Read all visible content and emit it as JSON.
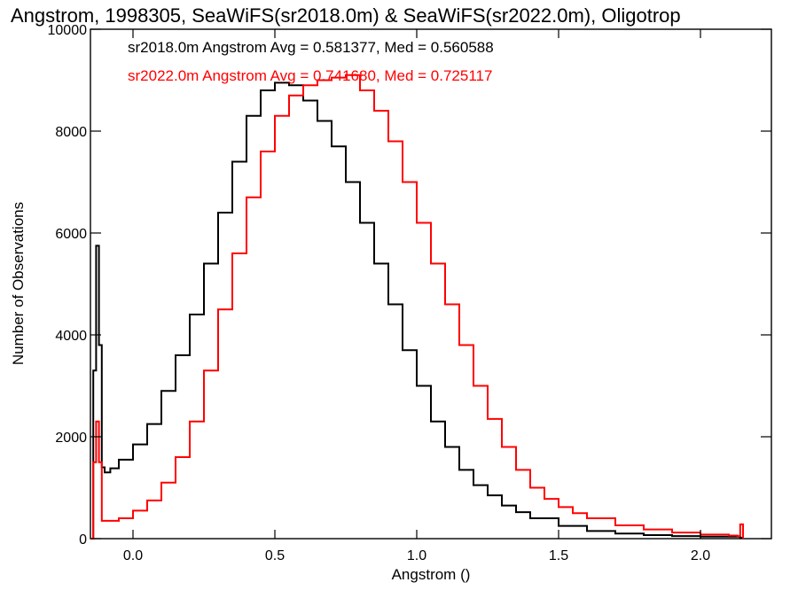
{
  "chart_data": {
    "type": "line",
    "step": true,
    "title": "Angstrom, 1998305, SeaWiFS(sr2018.0m) & SeaWiFS(sr2022.0m), Oligotrop",
    "xlabel": "Angstrom ()",
    "ylabel": "Number of Observations",
    "xlim": [
      -0.15,
      2.25
    ],
    "ylim": [
      0,
      10000
    ],
    "x_ticks": [
      0.0,
      0.5,
      1.0,
      1.5,
      2.0
    ],
    "x_tick_labels": [
      "0.0",
      "0.5",
      "1.0",
      "1.5",
      "2.0"
    ],
    "y_ticks": [
      0,
      2000,
      4000,
      6000,
      8000,
      10000
    ],
    "y_tick_labels": [
      "0",
      "2000",
      "4000",
      "6000",
      "8000",
      "10000"
    ],
    "grid": false,
    "annotations": [
      {
        "text": "sr2018.0m Angstrom Avg = 0.581377, Med = 0.560588",
        "color": "#000000"
      },
      {
        "text": "sr2022.0m Angstrom Avg = 0.741680, Med = 0.725117",
        "color": "#ff0000"
      }
    ],
    "series": [
      {
        "color": "#000000",
        "x": [
          -0.15,
          -0.14,
          -0.13,
          -0.12,
          -0.11,
          -0.1,
          -0.08,
          -0.05,
          0.0,
          0.05,
          0.1,
          0.15,
          0.2,
          0.25,
          0.3,
          0.35,
          0.4,
          0.45,
          0.5,
          0.55,
          0.6,
          0.65,
          0.7,
          0.75,
          0.8,
          0.85,
          0.9,
          0.95,
          1.0,
          1.05,
          1.1,
          1.15,
          1.2,
          1.25,
          1.3,
          1.35,
          1.4,
          1.5,
          1.6,
          1.7,
          1.8,
          1.9,
          2.0,
          2.1,
          2.14,
          2.15
        ],
        "y": [
          0,
          3300,
          5750,
          3800,
          1400,
          1300,
          1380,
          1550,
          1850,
          2250,
          2900,
          3600,
          4400,
          5400,
          6400,
          7400,
          8300,
          8800,
          8950,
          8900,
          8600,
          8200,
          7700,
          7000,
          6200,
          5400,
          4600,
          3700,
          3000,
          2300,
          1800,
          1350,
          1050,
          850,
          650,
          520,
          400,
          250,
          150,
          100,
          70,
          50,
          40,
          40,
          20,
          0
        ]
      },
      {
        "color": "#ff0000",
        "x": [
          -0.15,
          -0.14,
          -0.13,
          -0.12,
          -0.11,
          -0.1,
          -0.05,
          0.0,
          0.05,
          0.1,
          0.15,
          0.2,
          0.25,
          0.3,
          0.35,
          0.4,
          0.45,
          0.5,
          0.55,
          0.6,
          0.65,
          0.7,
          0.75,
          0.8,
          0.85,
          0.9,
          0.95,
          1.0,
          1.05,
          1.1,
          1.15,
          1.2,
          1.25,
          1.3,
          1.35,
          1.4,
          1.45,
          1.5,
          1.55,
          1.6,
          1.7,
          1.8,
          1.9,
          2.0,
          2.1,
          2.13,
          2.14,
          2.15
        ],
        "y": [
          0,
          1500,
          2300,
          1500,
          350,
          350,
          400,
          550,
          750,
          1100,
          1600,
          2300,
          3300,
          4500,
          5600,
          6700,
          7600,
          8300,
          8700,
          8900,
          9000,
          9050,
          9100,
          8800,
          8400,
          7800,
          7000,
          6200,
          5400,
          4600,
          3800,
          3000,
          2350,
          1800,
          1350,
          1000,
          780,
          620,
          500,
          400,
          260,
          180,
          120,
          80,
          60,
          50,
          280,
          0
        ]
      }
    ]
  }
}
